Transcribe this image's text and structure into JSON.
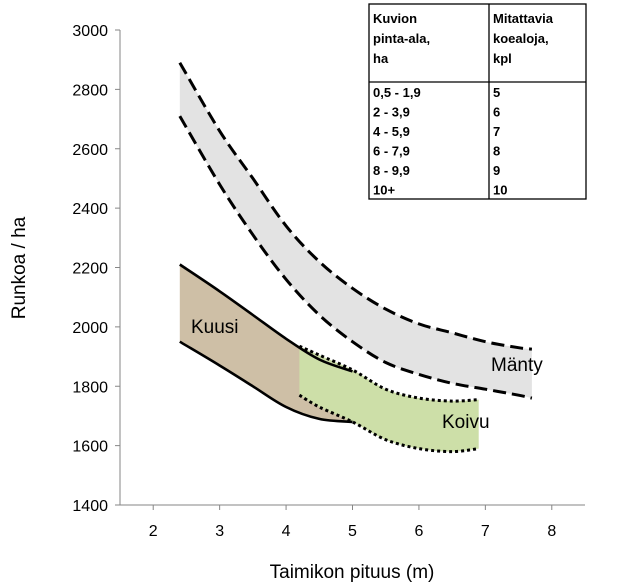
{
  "chart_data": {
    "type": "area",
    "xlabel": "Taimikon pituus (m)",
    "ylabel": "Runkoa / ha",
    "xlim": [
      1.5,
      8.5
    ],
    "ylim": [
      1400,
      3000
    ],
    "xticks": [
      "2",
      "3",
      "4",
      "5",
      "6",
      "7",
      "8"
    ],
    "yticks": [
      "1400",
      "1600",
      "1800",
      "2000",
      "2200",
      "2400",
      "2600",
      "2800",
      "3000"
    ],
    "grid": false,
    "series": [
      {
        "name": "Mänty",
        "color": "#e3e3e3",
        "line_style": "dashed",
        "x": [
          2.4,
          3,
          3.5,
          4,
          4.5,
          5,
          5.5,
          6,
          6.5,
          7,
          7.5,
          7.7
        ],
        "upper": [
          2890,
          2660,
          2500,
          2340,
          2220,
          2130,
          2060,
          2010,
          1980,
          1950,
          1930,
          1925
        ],
        "lower": [
          2710,
          2480,
          2310,
          2160,
          2040,
          1950,
          1880,
          1840,
          1810,
          1790,
          1770,
          1760
        ]
      },
      {
        "name": "Kuusi",
        "color": "#cebfa6",
        "line_style": "solid",
        "x": [
          2.4,
          3,
          3.5,
          4,
          4.5,
          5
        ],
        "upper": [
          2210,
          2120,
          2040,
          1960,
          1890,
          1850
        ],
        "lower": [
          1950,
          1870,
          1800,
          1730,
          1690,
          1680
        ]
      },
      {
        "name": "Koivu",
        "color": "#cddfa8",
        "line_style": "dotted",
        "x": [
          4.2,
          4.5,
          5,
          5.5,
          6,
          6.5,
          6.9
        ],
        "upper": [
          1935,
          1905,
          1855,
          1790,
          1760,
          1750,
          1755
        ],
        "lower": [
          1770,
          1730,
          1680,
          1620,
          1590,
          1580,
          1590
        ]
      }
    ],
    "table": {
      "headers": [
        [
          "Kuvion",
          "pinta-ala,",
          "ha"
        ],
        [
          "Mitattavia",
          "koealoja,",
          "kpl"
        ]
      ],
      "rows": [
        [
          "0,5 - 1,9",
          "5"
        ],
        [
          "2 - 3,9",
          "6"
        ],
        [
          "4 - 5,9",
          "7"
        ],
        [
          "6 - 7,9",
          "8"
        ],
        [
          "8 - 9,9",
          "9"
        ],
        [
          "10+",
          "10"
        ]
      ]
    }
  }
}
